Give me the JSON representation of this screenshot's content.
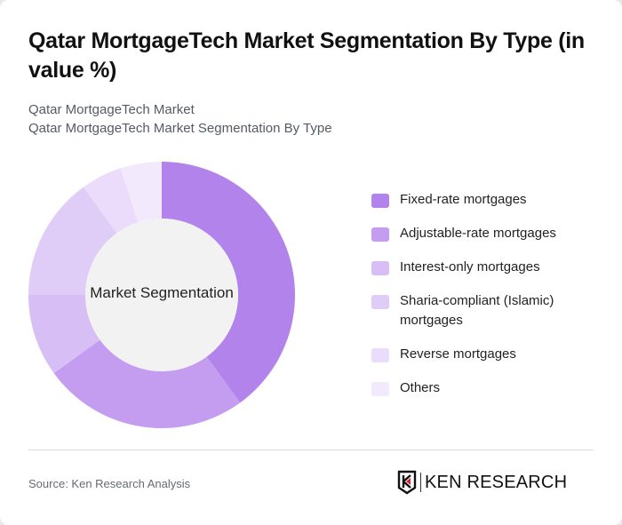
{
  "header": {
    "title": "Qatar MortgageTech Market Segmentation By Type (in value %)",
    "subtitle_line1": "Qatar MortgageTech Market",
    "subtitle_line2": "Qatar MortgageTech Market Segmentation By Type"
  },
  "chart": {
    "center_label": "Market Segmentation"
  },
  "legend": [
    {
      "label": "Fixed-rate mortgages",
      "color": "#b283ea"
    },
    {
      "label": "Adjustable-rate mortgages",
      "color": "#c59df0"
    },
    {
      "label": "Interest-only mortgages",
      "color": "#d7bff5"
    },
    {
      "label": "Sharia-compliant (Islamic) mortgages",
      "color": "#e0cdf7"
    },
    {
      "label": "Reverse mortgages",
      "color": "#eadcfa"
    },
    {
      "label": "Others",
      "color": "#f2eafc"
    }
  ],
  "footer": {
    "source": "Source: Ken Research Analysis",
    "logo_text": "KEN RESEARCH"
  },
  "chart_data": {
    "type": "pie",
    "title": "Qatar MortgageTech Market Segmentation By Type (in value %)",
    "subtitle": "Qatar MortgageTech Market Segmentation By Type",
    "center_label": "Market Segmentation",
    "donut": true,
    "categories": [
      "Fixed-rate mortgages",
      "Adjustable-rate mortgages",
      "Interest-only mortgages",
      "Sharia-compliant (Islamic) mortgages",
      "Reverse mortgages",
      "Others"
    ],
    "values": [
      40,
      25,
      10,
      15,
      5,
      5
    ],
    "colors": [
      "#b283ea",
      "#c59df0",
      "#d7bff5",
      "#e0cdf7",
      "#eadcfa",
      "#f2eafc"
    ],
    "legend_position": "right",
    "units": "%"
  }
}
